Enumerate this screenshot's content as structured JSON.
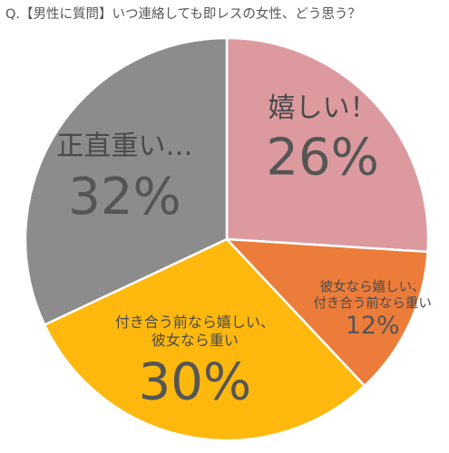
{
  "title": "Q.【男性に質問】いつ連絡しても即レスの女性、どう思う？",
  "chart_data": {
    "type": "pie",
    "start_angle_deg": 0,
    "direction": "clockwise",
    "slices": [
      {
        "label_lines": [
          "嬉しい！"
        ],
        "value": 26,
        "value_text": "26%",
        "color": "#DC9A9F"
      },
      {
        "label_lines": [
          "彼女なら嬉しい、",
          "付き合う前なら重い"
        ],
        "value": 12,
        "value_text": "12%",
        "color": "#EB7C3A"
      },
      {
        "label_lines": [
          "付き合う前なら嬉しい、",
          "彼女なら重い"
        ],
        "value": 30,
        "value_text": "30%",
        "color": "#FEB80E"
      },
      {
        "label_lines": [
          "正直重い…"
        ],
        "value": 32,
        "value_text": "32%",
        "color": "#8C8C8C"
      }
    ]
  }
}
